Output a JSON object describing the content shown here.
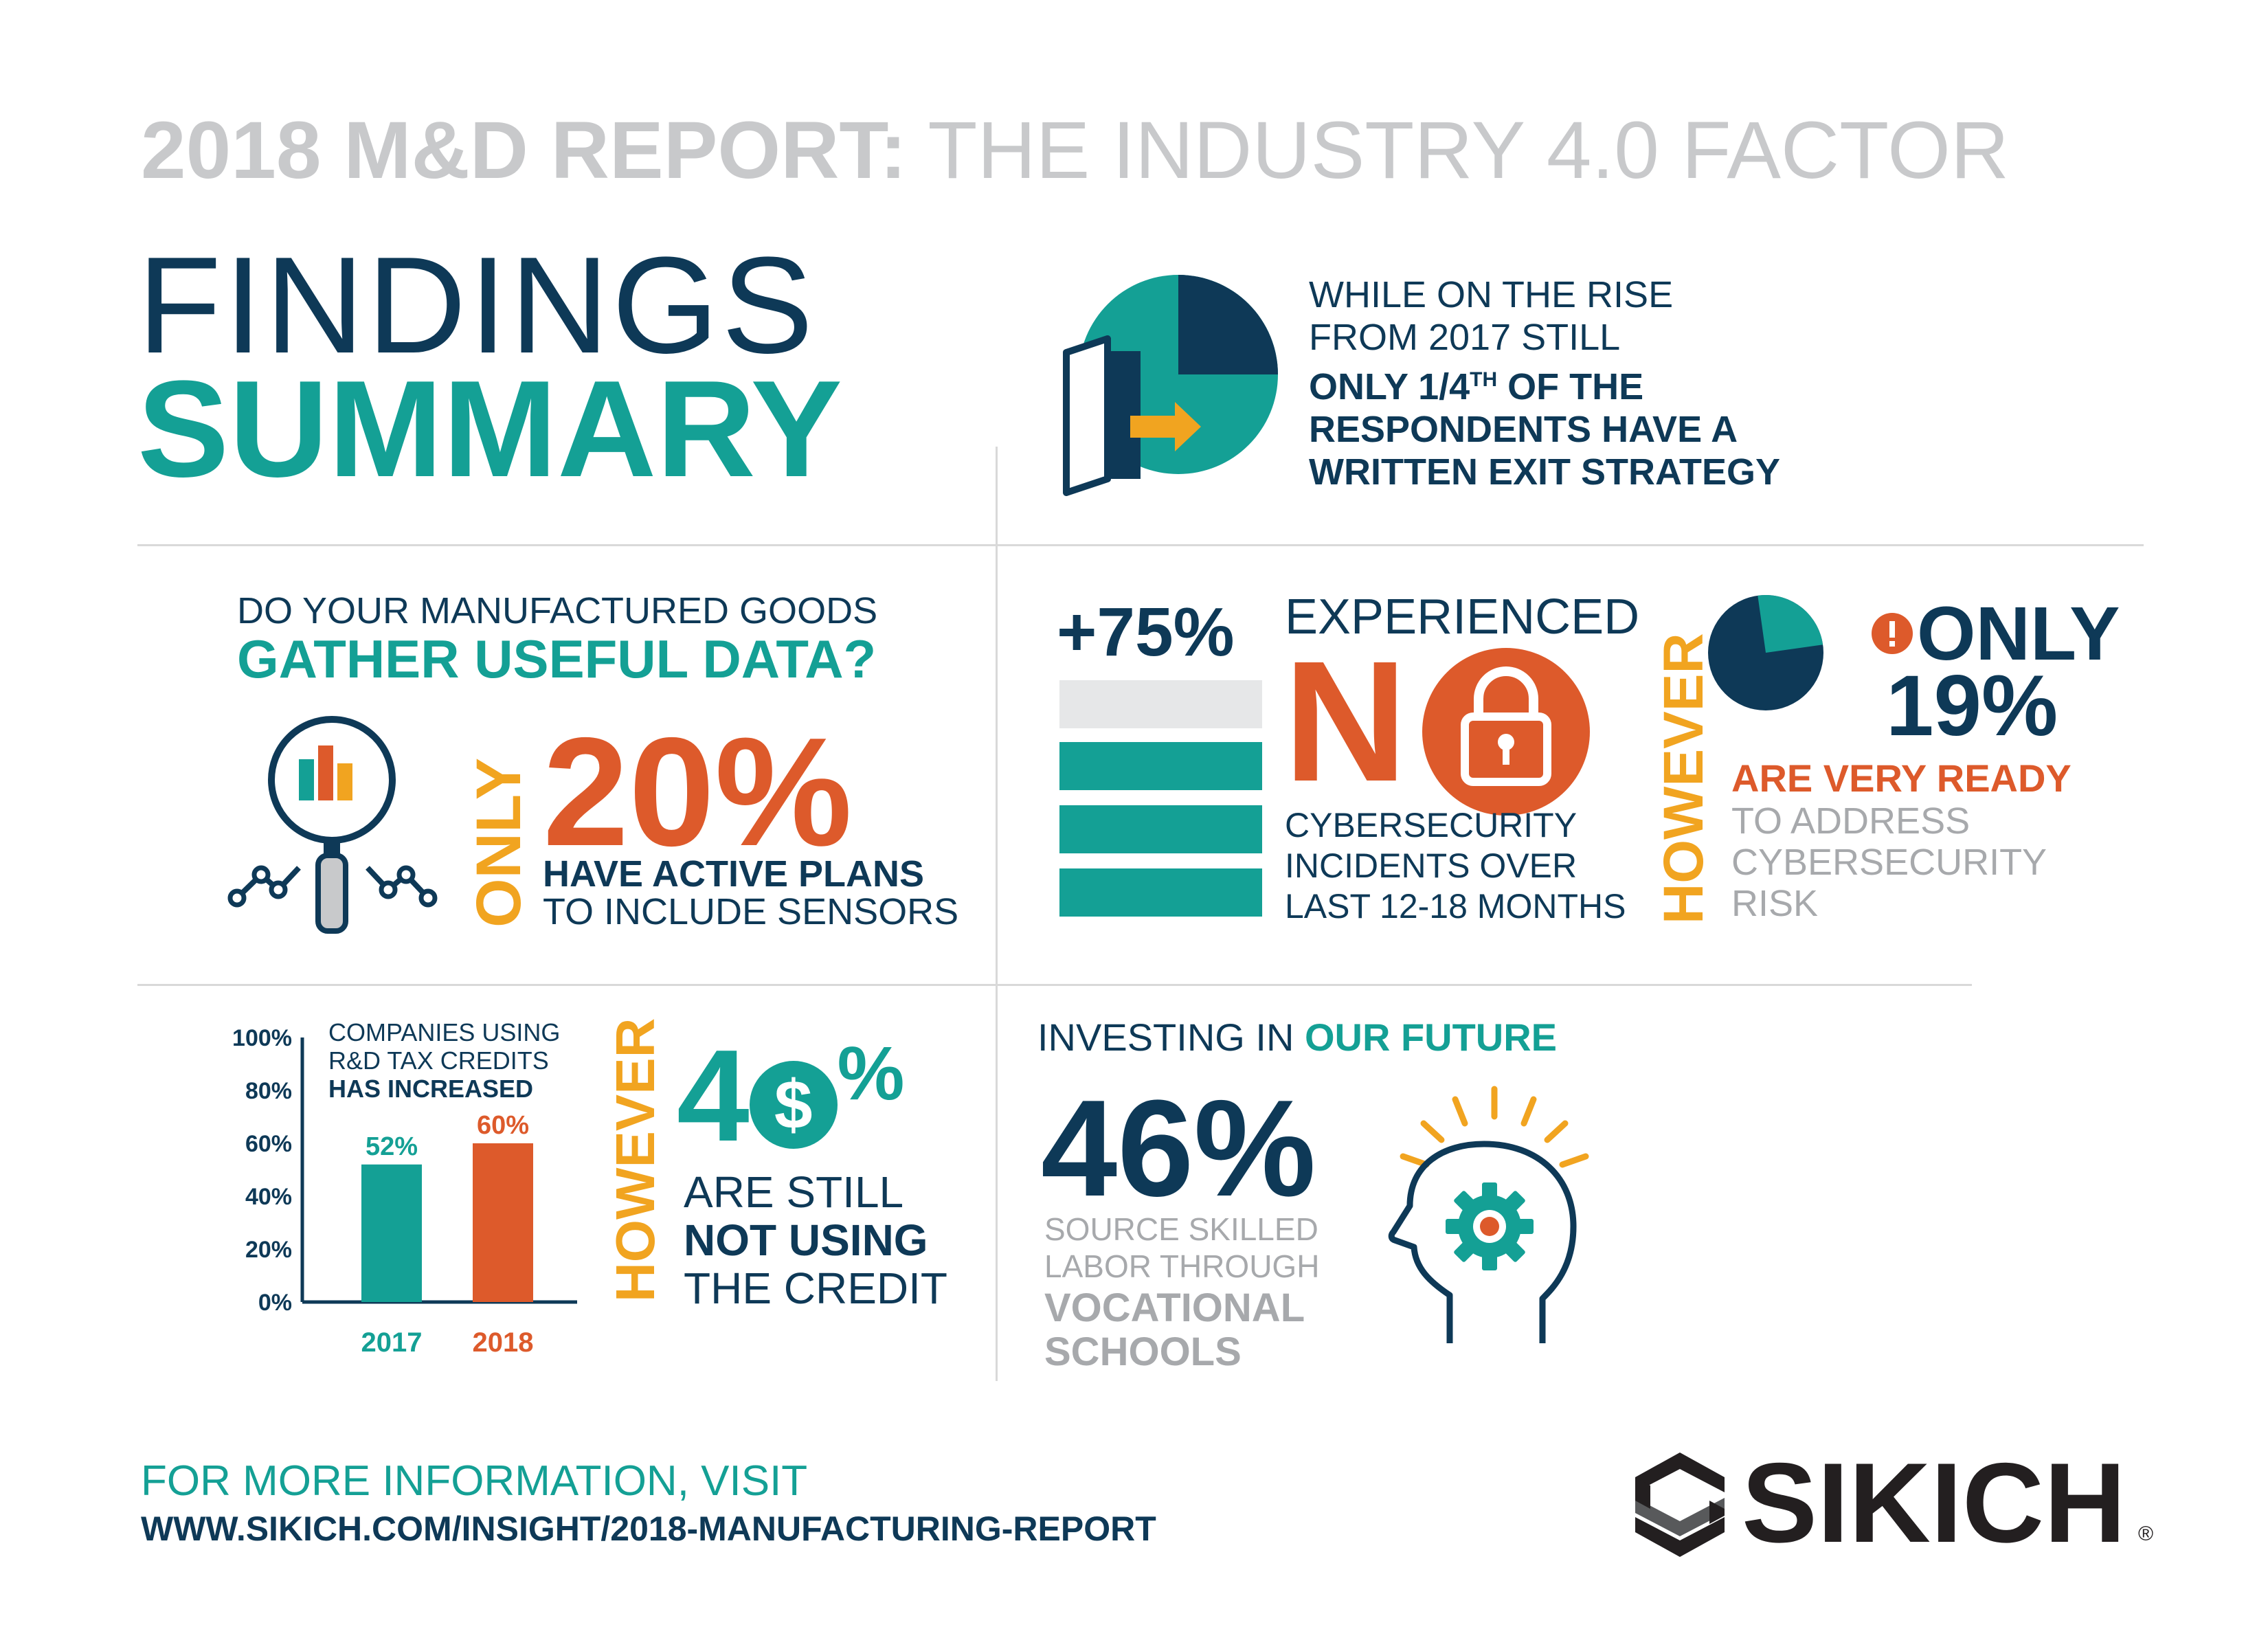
{
  "header": {
    "title_bold": "2018 M&D REPORT:",
    "title_light": "THE INDUSTRY 4.0 FACTOR",
    "findings": "FINDINGS",
    "summary": "SUMMARY"
  },
  "exit": {
    "line1": "WHILE ON THE RISE",
    "line2": "FROM 2017 STILL",
    "line3_pre": "ONLY 1/4",
    "line3_sup": "TH",
    "line3_post": " OF THE",
    "line4": "RESPONDENTS HAVE A",
    "line5": "WRITTEN EXIT STRATEGY"
  },
  "data_section": {
    "question1": "DO YOUR  MANUFACTURED GOODS",
    "question2": "GATHER USEFUL DATA?",
    "only": "ONLY",
    "percent": "20%",
    "desc1": "HAVE ACTIVE PLANS",
    "desc2": "TO INCLUDE SENSORS"
  },
  "cyber": {
    "percent": "+75%",
    "experienced": "EXPERIENCED",
    "no": "N",
    "desc1": "CYBERSECURITY",
    "desc2": "INCIDENTS OVER",
    "desc3": "LAST 12-18 MONTHS",
    "however": "HOWEVER",
    "only": "ONLY",
    "only_pct": "19%",
    "ready": "ARE VERY READY",
    "ready2": "TO ADDRESS",
    "ready3": "CYBERSECURITY",
    "ready4": "RISK",
    "bars_filled": 3,
    "bars_total": 4
  },
  "tax": {
    "legend1": "COMPANIES USING",
    "legend2": "R&D TAX CREDITS",
    "legend3": "HAS INCREASED",
    "however": "HOWEVER",
    "pct_left": "4",
    "pct_icon": "$",
    "pct_right": "%",
    "desc1": "ARE STILL",
    "desc2": "NOT USING",
    "desc3": "THE CREDIT"
  },
  "chart_data": {
    "type": "bar",
    "categories": [
      "2017",
      "2018"
    ],
    "values": [
      52,
      60
    ],
    "value_labels": [
      "52%",
      "60%"
    ],
    "ylim": [
      0,
      100
    ],
    "yticks": [
      "100%",
      "80%",
      "60%",
      "40%",
      "20%",
      "0%"
    ],
    "title": "COMPANIES USING R&D TAX CREDITS HAS INCREASED",
    "colors": [
      "#14a095",
      "#dd5a2b"
    ]
  },
  "future": {
    "title_pre": "INVESTING IN ",
    "title_bold": "OUR FUTURE",
    "percent": "46%",
    "desc1": "SOURCE SKILLED",
    "desc2": "LABOR THROUGH",
    "desc3": "VOCATIONAL",
    "desc4": "SCHOOLS"
  },
  "footer": {
    "line1": "FOR MORE INFORMATION, VISIT",
    "url": "WWW.SIKICH.COM/INSIGHT/2018-MANUFACTURING-REPORT",
    "brand": "SIKICH",
    "registered": "®"
  },
  "colors": {
    "navy": "#0e3957",
    "teal": "#14a095",
    "orange": "#dd5a2b",
    "amber": "#f1a420",
    "grey": "#a7a9ac"
  }
}
